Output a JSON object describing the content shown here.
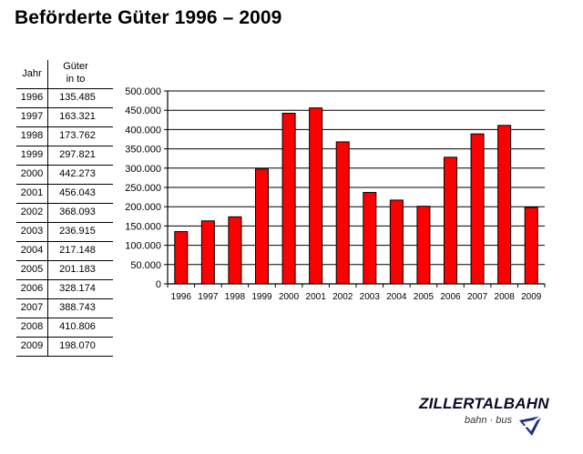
{
  "title": "Beförderte Güter 1996 – 2009",
  "table": {
    "header_year": "Jahr",
    "header_value_line1": "Güter",
    "header_value_line2": "in to",
    "rows": [
      {
        "year": "1996",
        "value": "135.485"
      },
      {
        "year": "1997",
        "value": "163.321"
      },
      {
        "year": "1998",
        "value": "173.762"
      },
      {
        "year": "1999",
        "value": "297.821"
      },
      {
        "year": "2000",
        "value": "442.273"
      },
      {
        "year": "2001",
        "value": "456.043"
      },
      {
        "year": "2002",
        "value": "368.093"
      },
      {
        "year": "2003",
        "value": "236.915"
      },
      {
        "year": "2004",
        "value": "217.148"
      },
      {
        "year": "2005",
        "value": "201.183"
      },
      {
        "year": "2006",
        "value": "328.174"
      },
      {
        "year": "2007",
        "value": "388.743"
      },
      {
        "year": "2008",
        "value": "410.806"
      },
      {
        "year": "2009",
        "value": "198.070"
      }
    ]
  },
  "chart_data": {
    "type": "bar",
    "categories": [
      "1996",
      "1997",
      "1998",
      "1999",
      "2000",
      "2001",
      "2002",
      "2003",
      "2004",
      "2005",
      "2006",
      "2007",
      "2008",
      "2009"
    ],
    "values": [
      135485,
      163321,
      173762,
      297821,
      442273,
      456043,
      368093,
      236915,
      217148,
      201183,
      328174,
      388743,
      410806,
      198070
    ],
    "ylim": [
      0,
      500000
    ],
    "yticks": [
      0,
      50000,
      100000,
      150000,
      200000,
      250000,
      300000,
      350000,
      400000,
      450000,
      500000
    ],
    "ytick_labels": [
      "0",
      "50.000",
      "100.000",
      "150.000",
      "200.000",
      "250.000",
      "300.000",
      "350.000",
      "400.000",
      "450.000",
      "500.000"
    ],
    "grid": true,
    "bar_color": "#ff0000",
    "title": "",
    "xlabel": "",
    "ylabel": ""
  },
  "logo": {
    "name": "ZILLERTALBAHN",
    "tagline": "bahn · bus"
  }
}
